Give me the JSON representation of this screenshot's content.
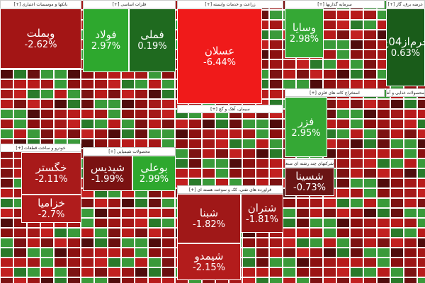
{
  "sectors": [
    {
      "title": "بانکها و موسسات اعتباری [+]",
      "tiles": [
        {
          "name": "وبملت",
          "change": "-2.62%",
          "color": "#a31515"
        }
      ]
    },
    {
      "title": "خودرو و ساخت قطعات [+]",
      "tiles": [
        {
          "name": "خگستر",
          "change": "-2.11%",
          "color": "#a81a1a"
        },
        {
          "name": "خزامیا",
          "change": "-2.7%",
          "color": "#b01c1c"
        }
      ]
    },
    {
      "title": "فلزات اساسی [+]",
      "tiles": [
        {
          "name": "فولاد",
          "change": "2.97%",
          "color": "#2ea82e"
        },
        {
          "name": "فملی",
          "change": "0.19%",
          "color": "#1f6a1f"
        }
      ]
    },
    {
      "title": "محصولات شیمیایی [+]",
      "tiles": [
        {
          "name": "شپدیس",
          "change": "-1.99%",
          "color": "#7a1212"
        },
        {
          "name": "بوعلی",
          "change": "2.99%",
          "color": "#2ea82e"
        }
      ]
    },
    {
      "title": "زراعت و خدمات وابسته [+]",
      "tiles": [
        {
          "name": "عسلان",
          "change": "-6.44%",
          "color": "#f01a1a"
        }
      ]
    },
    {
      "title": "سیمان، آهک و گچ [+]",
      "tiles": []
    },
    {
      "title": "فراورده های نفتی، کک و سوخت هسته ای [+]",
      "tiles": [
        {
          "name": "شبنا",
          "change": "-1.82%",
          "color": "#a01818"
        },
        {
          "name": "شتران",
          "change": "-1.81%",
          "color": "#9a1616"
        },
        {
          "name": "شیمدو",
          "change": "-2.15%",
          "color": "#b31c1c"
        }
      ]
    },
    {
      "title": "سرمایه گذاریها [+]",
      "tiles": [
        {
          "name": "وسایا",
          "change": "2.98%",
          "color": "#35a835"
        }
      ]
    },
    {
      "title": "استخراج کانه های فلزی [+]",
      "tiles": [
        {
          "name": "فزر",
          "change": "2.95%",
          "color": "#35a835"
        }
      ]
    },
    {
      "title": "شرکتهای چند رشته ای صنعتی [+]",
      "tiles": [
        {
          "name": "شسینا",
          "change": "-0.73%",
          "color": "#6a1515"
        }
      ]
    },
    {
      "title": "محصولات غذایی و آشامیدنی [+]",
      "tiles": []
    },
    {
      "title": "عرضه برق، گاز [+]",
      "tiles": [
        {
          "name": "حرم‌از04ع",
          "change": "0.63%",
          "color": "#1a5c1a"
        }
      ]
    }
  ]
}
